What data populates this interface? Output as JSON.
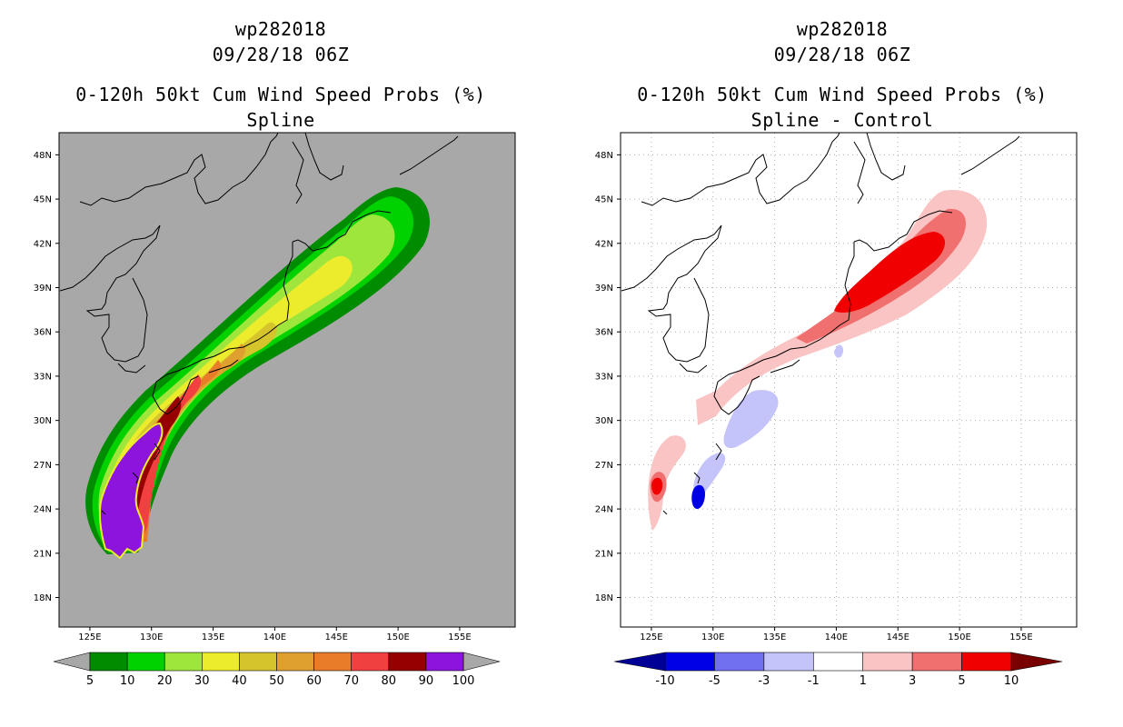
{
  "left_panel": {
    "storm_id": "wp282018",
    "datetime": "09/28/18 06Z",
    "product": "0-120h 50kt Cum Wind Speed Probs (%)",
    "subtitle": "Spline",
    "background_color": "#a8a8a8",
    "colorbar": {
      "colors": [
        "#008c00",
        "#00d200",
        "#9ee63c",
        "#ecec2c",
        "#d6c42c",
        "#e0a030",
        "#e87c28",
        "#f04040",
        "#960000",
        "#8c14dc"
      ],
      "under_color": "#a8a8a8",
      "over_color": "#a8a8a8",
      "labels": [
        "5",
        "10",
        "20",
        "30",
        "40",
        "50",
        "60",
        "70",
        "80",
        "90",
        "100"
      ]
    }
  },
  "right_panel": {
    "storm_id": "wp282018",
    "datetime": "09/28/18 06Z",
    "product": "0-120h 50kt Cum Wind Speed Probs (%)",
    "subtitle": "Spline - Control",
    "background_color": "#ffffff",
    "colorbar": {
      "colors": [
        "#0000e6",
        "#7070f0",
        "#c4c4fa",
        "#ffffff",
        "#fac4c4",
        "#f07070",
        "#f00000"
      ],
      "under_color": "#000096",
      "over_color": "#780000",
      "labels": [
        "-10",
        "-5",
        "-3",
        "-1",
        "1",
        "3",
        "5",
        "10"
      ]
    }
  },
  "map": {
    "lat_labels": [
      "48N",
      "45N",
      "42N",
      "39N",
      "36N",
      "33N",
      "30N",
      "27N",
      "24N",
      "21N",
      "18N"
    ],
    "lon_labels": [
      "125E",
      "130E",
      "135E",
      "140E",
      "145E",
      "150E",
      "155E"
    ],
    "lat_values": [
      48,
      45,
      42,
      39,
      36,
      33,
      30,
      27,
      24,
      21,
      18
    ],
    "lon_values": [
      125,
      130,
      135,
      140,
      145,
      150,
      155
    ],
    "lat_range": [
      16,
      49.5
    ],
    "lon_range": [
      122.5,
      159.5
    ]
  }
}
